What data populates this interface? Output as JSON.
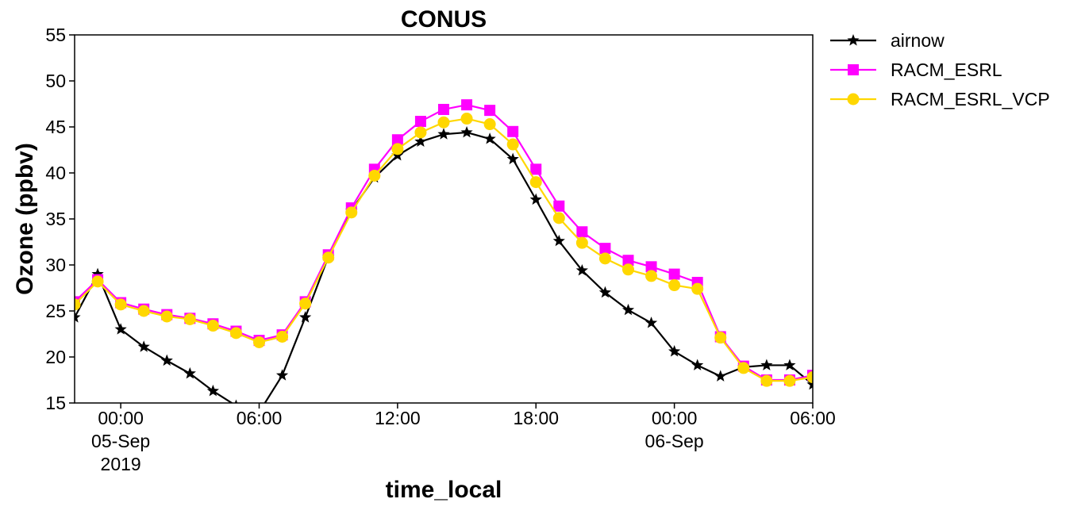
{
  "chart_data": {
    "type": "line",
    "title": "CONUS",
    "xlabel": "time_local",
    "ylabel": "Ozone (ppbv)",
    "xlim": [
      "2019-09-04 22:00",
      "2019-09-06 06:00"
    ],
    "ylim": [
      15,
      55
    ],
    "yticks": [
      15,
      20,
      25,
      30,
      35,
      40,
      45,
      50,
      55
    ],
    "xticks": [
      {
        "t": "2019-09-05 00:00",
        "lines": [
          "00:00",
          "05-Sep",
          "2019"
        ]
      },
      {
        "t": "2019-09-05 06:00",
        "lines": [
          "06:00"
        ]
      },
      {
        "t": "2019-09-05 12:00",
        "lines": [
          "12:00"
        ]
      },
      {
        "t": "2019-09-05 18:00",
        "lines": [
          "18:00"
        ]
      },
      {
        "t": "2019-09-06 00:00",
        "lines": [
          "00:00",
          "06-Sep"
        ]
      },
      {
        "t": "2019-09-06 06:00",
        "lines": [
          "06:00"
        ]
      }
    ],
    "grid": false,
    "legend_position": "outside-top-right",
    "x": [
      "2019-09-04 22:00",
      "2019-09-04 23:00",
      "2019-09-05 00:00",
      "2019-09-05 01:00",
      "2019-09-05 02:00",
      "2019-09-05 03:00",
      "2019-09-05 04:00",
      "2019-09-05 05:00",
      "2019-09-05 06:00",
      "2019-09-05 07:00",
      "2019-09-05 08:00",
      "2019-09-05 09:00",
      "2019-09-05 10:00",
      "2019-09-05 11:00",
      "2019-09-05 12:00",
      "2019-09-05 13:00",
      "2019-09-05 14:00",
      "2019-09-05 15:00",
      "2019-09-05 16:00",
      "2019-09-05 17:00",
      "2019-09-05 18:00",
      "2019-09-05 19:00",
      "2019-09-05 20:00",
      "2019-09-05 21:00",
      "2019-09-05 22:00",
      "2019-09-05 23:00",
      "2019-09-06 00:00",
      "2019-09-06 01:00",
      "2019-09-06 02:00",
      "2019-09-06 03:00",
      "2019-09-06 04:00",
      "2019-09-06 05:00",
      "2019-09-06 06:00"
    ],
    "series": [
      {
        "name": "airnow",
        "color": "#000000",
        "marker": "star",
        "values": [
          24.3,
          29.0,
          23.0,
          21.1,
          19.6,
          18.2,
          16.3,
          14.7,
          14.0,
          18.0,
          24.3,
          30.9,
          35.9,
          39.5,
          41.9,
          43.4,
          44.2,
          44.4,
          43.7,
          41.5,
          37.1,
          32.6,
          29.4,
          27.0,
          25.1,
          23.7,
          20.6,
          19.1,
          17.9,
          18.9,
          19.1,
          19.1,
          17.0
        ]
      },
      {
        "name": "RACM_ESRL",
        "color": "#ff00ff",
        "marker": "square",
        "values": [
          26.0,
          28.4,
          25.9,
          25.2,
          24.6,
          24.2,
          23.6,
          22.8,
          21.8,
          22.4,
          26.0,
          31.1,
          36.2,
          40.4,
          43.6,
          45.6,
          46.9,
          47.4,
          46.8,
          44.5,
          40.4,
          36.4,
          33.6,
          31.8,
          30.5,
          29.8,
          29.0,
          28.1,
          22.2,
          19.0,
          17.5,
          17.5,
          18.0
        ]
      },
      {
        "name": "RACM_ESRL_VCP",
        "color": "#ffd700",
        "marker": "circle",
        "values": [
          25.7,
          28.2,
          25.7,
          25.0,
          24.4,
          24.1,
          23.4,
          22.6,
          21.6,
          22.2,
          25.8,
          30.8,
          35.7,
          39.7,
          42.6,
          44.4,
          45.5,
          45.9,
          45.3,
          43.1,
          39.0,
          35.1,
          32.4,
          30.7,
          29.5,
          28.8,
          27.8,
          27.4,
          22.1,
          18.8,
          17.4,
          17.4,
          17.8
        ]
      }
    ]
  }
}
